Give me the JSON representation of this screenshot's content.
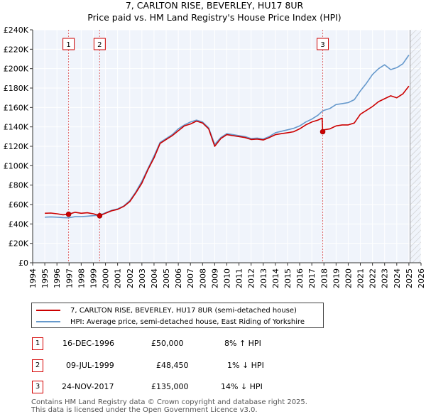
{
  "chart_data": {
    "type": "line",
    "title": "7, CARLTON RISE, BEVERLEY, HU17 8UR",
    "subtitle": "Price paid vs. HM Land Registry's House Price Index (HPI)",
    "xlim": [
      1994,
      2026
    ],
    "ylim": [
      0,
      240000
    ],
    "x_ticks": [
      "1994",
      "1995",
      "1996",
      "1997",
      "1998",
      "1999",
      "2000",
      "2001",
      "2002",
      "2003",
      "2004",
      "2005",
      "2006",
      "2007",
      "2008",
      "2009",
      "2010",
      "2011",
      "2012",
      "2013",
      "2014",
      "2015",
      "2016",
      "2017",
      "2018",
      "2019",
      "2020",
      "2021",
      "2022",
      "2023",
      "2024",
      "2025",
      "2026"
    ],
    "y_ticks": [
      {
        "v": 0,
        "label": "£0"
      },
      {
        "v": 20000,
        "label": "£20K"
      },
      {
        "v": 40000,
        "label": "£40K"
      },
      {
        "v": 60000,
        "label": "£60K"
      },
      {
        "v": 80000,
        "label": "£80K"
      },
      {
        "v": 100000,
        "label": "£100K"
      },
      {
        "v": 120000,
        "label": "£120K"
      },
      {
        "v": 140000,
        "label": "£140K"
      },
      {
        "v": 160000,
        "label": "£160K"
      },
      {
        "v": 180000,
        "label": "£180K"
      },
      {
        "v": 200000,
        "label": "£200K"
      },
      {
        "v": 220000,
        "label": "£220K"
      },
      {
        "v": 240000,
        "label": "£240K"
      }
    ],
    "grid": true,
    "series": [
      {
        "name": "7, CARLTON RISE, BEVERLEY, HU17 8UR (semi-detached house)",
        "color": "#cc0000",
        "x": [
          1995.0,
          1995.5,
          1996.0,
          1996.5,
          1996.96,
          1997.5,
          1998.0,
          1998.5,
          1999.0,
          1999.52,
          2000.0,
          2000.5,
          2001.0,
          2001.5,
          2002.0,
          2002.5,
          2003.0,
          2003.5,
          2004.0,
          2004.5,
          2005.0,
          2005.5,
          2006.0,
          2006.5,
          2007.0,
          2007.5,
          2008.0,
          2008.5,
          2009.0,
          2009.5,
          2010.0,
          2010.5,
          2011.0,
          2011.5,
          2012.0,
          2012.5,
          2013.0,
          2013.5,
          2014.0,
          2014.5,
          2015.0,
          2015.5,
          2016.0,
          2016.5,
          2017.0,
          2017.5,
          2017.85,
          2017.9,
          2018.0,
          2018.5,
          2019.0,
          2019.5,
          2020.0,
          2020.5,
          2021.0,
          2021.5,
          2022.0,
          2022.5,
          2023.0,
          2023.5,
          2024.0,
          2024.5,
          2025.0
        ],
        "y": [
          51000,
          51200,
          50500,
          49500,
          50000,
          52000,
          51000,
          51500,
          50500,
          48450,
          51000,
          53500,
          55000,
          58000,
          63000,
          72000,
          82000,
          96000,
          108000,
          123000,
          127000,
          131000,
          136000,
          141000,
          143000,
          146000,
          144000,
          138000,
          120000,
          128000,
          132000,
          131000,
          130000,
          129000,
          127000,
          127500,
          126500,
          129000,
          132000,
          133000,
          134000,
          135000,
          138000,
          142000,
          145000,
          147000,
          149000,
          135000,
          137000,
          138000,
          141000,
          142000,
          142000,
          144000,
          153000,
          157000,
          161000,
          166000,
          169000,
          172000,
          170000,
          174000,
          182000
        ]
      },
      {
        "name": "HPI: Average price, semi-detached house, East Riding of Yorkshire",
        "color": "#6699cc",
        "x": [
          1995.0,
          1995.5,
          1996.0,
          1996.5,
          1996.96,
          1997.5,
          1998.0,
          1998.5,
          1999.0,
          1999.52,
          2000.0,
          2000.5,
          2001.0,
          2001.5,
          2002.0,
          2002.5,
          2003.0,
          2003.5,
          2004.0,
          2004.5,
          2005.0,
          2005.5,
          2006.0,
          2006.5,
          2007.0,
          2007.5,
          2008.0,
          2008.5,
          2009.0,
          2009.5,
          2010.0,
          2010.5,
          2011.0,
          2011.5,
          2012.0,
          2012.5,
          2013.0,
          2013.5,
          2014.0,
          2014.5,
          2015.0,
          2015.5,
          2016.0,
          2016.5,
          2017.0,
          2017.5,
          2017.85,
          2018.0,
          2018.5,
          2019.0,
          2019.5,
          2020.0,
          2020.5,
          2021.0,
          2021.5,
          2022.0,
          2022.5,
          2023.0,
          2023.5,
          2024.0,
          2024.5,
          2025.0
        ],
        "y": [
          47000,
          47300,
          47000,
          46500,
          46300,
          47500,
          47500,
          48000,
          48500,
          49000,
          51500,
          54000,
          55500,
          58500,
          64000,
          73000,
          84000,
          97000,
          110000,
          124000,
          128000,
          132000,
          138000,
          142000,
          145000,
          147000,
          145000,
          139000,
          122000,
          129000,
          133000,
          132000,
          131000,
          130000,
          128000,
          128500,
          127500,
          130000,
          134000,
          135500,
          137000,
          138500,
          141000,
          145000,
          148000,
          152000,
          156000,
          157000,
          159000,
          163000,
          164000,
          165000,
          168000,
          177000,
          185000,
          194000,
          200000,
          204000,
          199000,
          201000,
          205000,
          214000
        ]
      }
    ],
    "markers": [
      {
        "label": "1",
        "x": 1996.96,
        "y": 50000
      },
      {
        "label": "2",
        "x": 1999.52,
        "y": 48450
      },
      {
        "label": "3",
        "x": 2017.9,
        "y": 135000
      }
    ]
  },
  "legend": {
    "items": [
      {
        "label": "7, CARLTON RISE, BEVERLEY, HU17 8UR (semi-detached house)",
        "color": "#cc0000"
      },
      {
        "label": "HPI: Average price, semi-detached house, East Riding of Yorkshire",
        "color": "#6699cc"
      }
    ]
  },
  "transactions": [
    {
      "num": "1",
      "date": "16-DEC-1996",
      "price": "£50,000",
      "delta": "8% ↑ HPI"
    },
    {
      "num": "2",
      "date": "09-JUL-1999",
      "price": "£48,450",
      "delta": "1% ↓ HPI"
    },
    {
      "num": "3",
      "date": "24-NOV-2017",
      "price": "£135,000",
      "delta": "14% ↓ HPI"
    }
  ],
  "footer": {
    "line1": "Contains HM Land Registry data © Crown copyright and database right 2025.",
    "line2": "This data is licensed under the Open Government Licence v3.0."
  }
}
